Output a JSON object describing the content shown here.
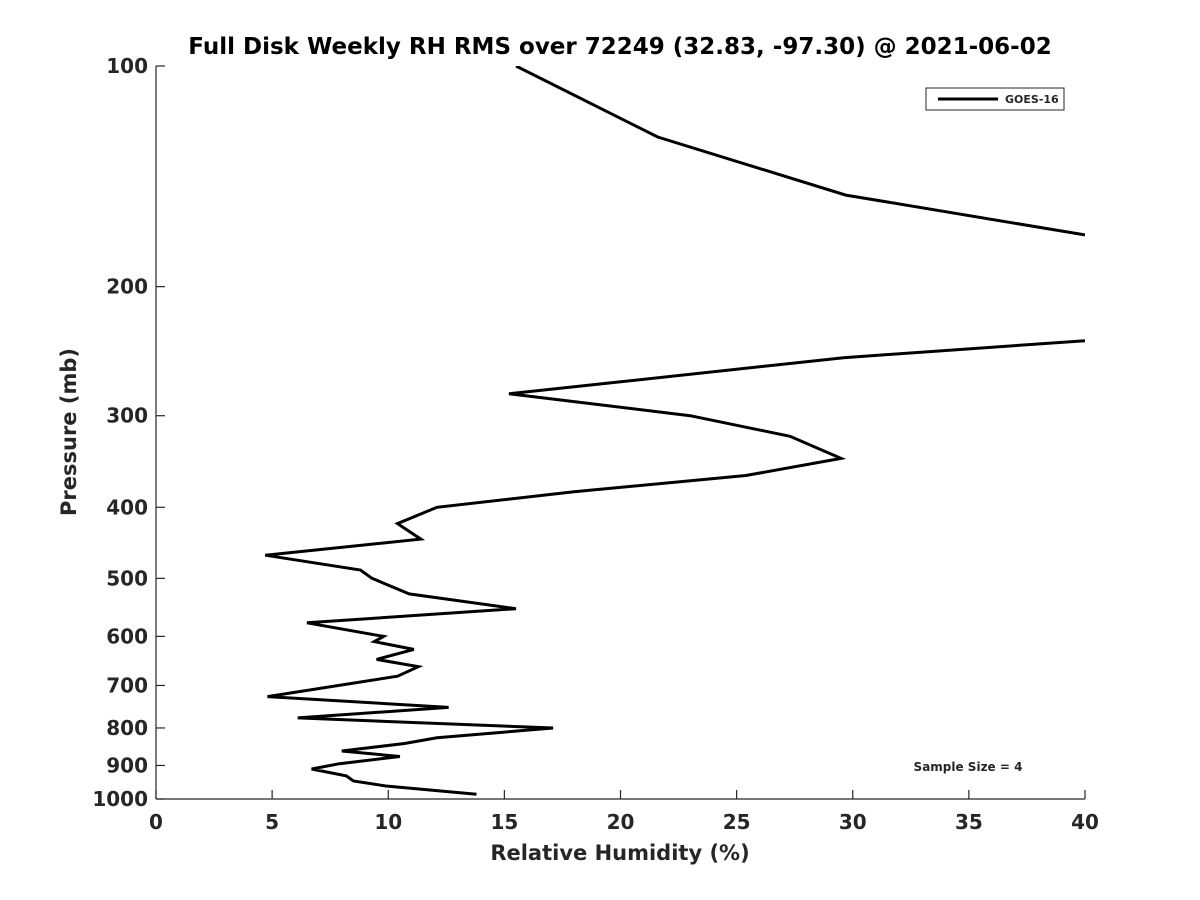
{
  "chart_data": {
    "type": "line",
    "title": "Full Disk Weekly RH RMS over 72249 (32.83, -97.30) @ 2021-06-02",
    "xlabel": "Relative Humidity (%)",
    "ylabel": "Pressure (mb)",
    "xlim": [
      0,
      40
    ],
    "ylim": [
      100,
      1000
    ],
    "y_scale": "log",
    "y_reversed": true,
    "x_ticks": [
      0,
      5,
      10,
      15,
      20,
      25,
      30,
      35,
      40
    ],
    "y_ticks": [
      100,
      200,
      300,
      400,
      500,
      600,
      700,
      800,
      900,
      1000
    ],
    "grid": false,
    "legend_position": "top-right",
    "annotation": "Sample Size = 4",
    "series": [
      {
        "name": "GOES-16",
        "color": "#000000",
        "segments": [
          [
            {
              "x": 15.5,
              "y": 100
            },
            {
              "x": 21.6,
              "y": 125
            },
            {
              "x": 29.7,
              "y": 150
            },
            {
              "x": 40,
              "y": 170
            }
          ],
          [
            {
              "x": 40,
              "y": 237
            },
            {
              "x": 29.6,
              "y": 250
            },
            {
              "x": 15.2,
              "y": 280
            },
            {
              "x": 23.0,
              "y": 300
            },
            {
              "x": 27.3,
              "y": 320
            },
            {
              "x": 29.5,
              "y": 343
            },
            {
              "x": 25.4,
              "y": 362
            },
            {
              "x": 18.0,
              "y": 381
            },
            {
              "x": 12.1,
              "y": 400
            },
            {
              "x": 10.4,
              "y": 421
            },
            {
              "x": 11.4,
              "y": 442
            },
            {
              "x": 4.7,
              "y": 465
            },
            {
              "x": 8.8,
              "y": 487
            },
            {
              "x": 9.3,
              "y": 500
            },
            {
              "x": 10.9,
              "y": 525
            },
            {
              "x": 15.5,
              "y": 550
            },
            {
              "x": 6.5,
              "y": 575
            },
            {
              "x": 9.8,
              "y": 600
            },
            {
              "x": 9.4,
              "y": 610
            },
            {
              "x": 11.1,
              "y": 625
            },
            {
              "x": 9.5,
              "y": 645
            },
            {
              "x": 11.3,
              "y": 660
            },
            {
              "x": 10.4,
              "y": 680
            },
            {
              "x": 4.8,
              "y": 725
            },
            {
              "x": 12.6,
              "y": 750
            },
            {
              "x": 6.1,
              "y": 775
            },
            {
              "x": 17.1,
              "y": 800
            },
            {
              "x": 12.1,
              "y": 825
            },
            {
              "x": 10.7,
              "y": 840
            },
            {
              "x": 8.0,
              "y": 860
            },
            {
              "x": 10.5,
              "y": 875
            },
            {
              "x": 7.9,
              "y": 895
            },
            {
              "x": 6.7,
              "y": 910
            },
            {
              "x": 8.2,
              "y": 930
            },
            {
              "x": 8.5,
              "y": 945
            },
            {
              "x": 9.9,
              "y": 960
            },
            {
              "x": 13.8,
              "y": 985
            }
          ]
        ]
      }
    ]
  }
}
